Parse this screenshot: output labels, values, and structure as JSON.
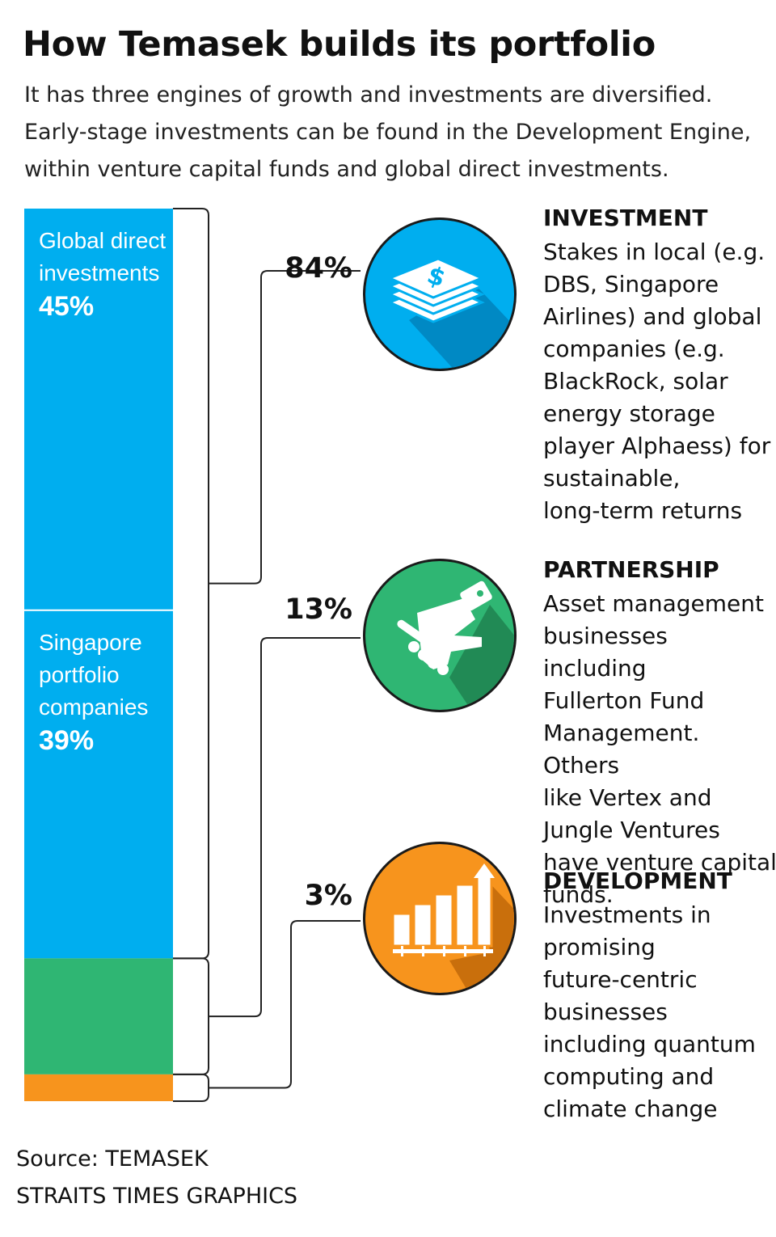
{
  "title": "How Temasek builds its portfolio",
  "subtitle_lines": [
    "It has three engines of growth and investments are diversified.",
    "Early-stage investments can be found in the Development Engine,",
    "within venture capital funds and global direct investments."
  ],
  "colors": {
    "blue": "#00aeef",
    "green": "#2fb673",
    "orange": "#f7941d",
    "line": "#222222"
  },
  "chart_data": {
    "type": "bar",
    "stacked": true,
    "segments": [
      {
        "label": "Global direct investments",
        "label_lines": [
          "Global direct",
          "investments"
        ],
        "value": 45,
        "value_label": "45%",
        "engine": "investment",
        "color": "#00aeef"
      },
      {
        "label": "Singapore portfolio companies",
        "label_lines": [
          "Singapore",
          "portfolio",
          "companies"
        ],
        "value": 39,
        "value_label": "39%",
        "engine": "investment",
        "color": "#00aeef"
      },
      {
        "label": "",
        "value": 13,
        "engine": "partnership",
        "color": "#2fb673"
      },
      {
        "label": "",
        "value": 3,
        "engine": "development",
        "color": "#f7941d"
      }
    ],
    "engines": [
      {
        "key": "investment",
        "name": "INVESTMENT",
        "value": 84,
        "pct_label": "84%",
        "color": "#00aeef",
        "icon": "money-stack-icon",
        "description_lines": [
          "Stakes in local (e.g.",
          "DBS, Singapore",
          "Airlines) and global",
          "companies (e.g.",
          "BlackRock, solar",
          "energy storage",
          "player Alphaess) for",
          "sustainable,",
          "long-term returns"
        ]
      },
      {
        "key": "partnership",
        "name": "PARTNERSHIP",
        "value": 13,
        "pct_label": "13%",
        "color": "#2fb673",
        "icon": "handshake-icon",
        "description_lines": [
          "Asset management",
          "businesses including",
          "Fullerton Fund",
          "Management. Others",
          "like Vertex and",
          "Jungle Ventures",
          "have venture capital",
          "funds."
        ]
      },
      {
        "key": "development",
        "name": "DEVELOPMENT",
        "value": 3,
        "pct_label": "3%",
        "color": "#f7941d",
        "icon": "growth-chart-icon",
        "description_lines": [
          "Investments in",
          "promising",
          "future-centric",
          "businesses",
          "including quantum",
          "computing and",
          "climate change"
        ]
      }
    ]
  },
  "footer": {
    "source": "Source: TEMASEK",
    "credit": "STRAITS TIMES GRAPHICS"
  }
}
